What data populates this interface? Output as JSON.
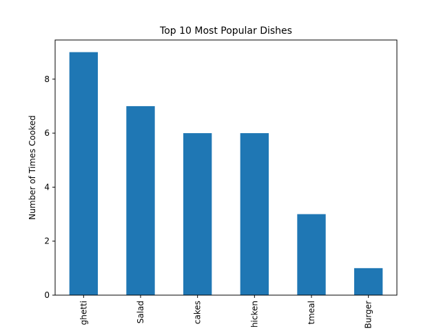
{
  "chart_data": {
    "type": "bar",
    "title": "Top 10 Most Popular Dishes",
    "xlabel": "",
    "ylabel": "Number of Times Cooked",
    "categories": [
      "ghetti",
      "Salad",
      "cakes",
      "hicken",
      "tmeal",
      "Burger"
    ],
    "values": [
      9,
      7,
      6,
      6,
      3,
      1
    ],
    "ylim": [
      0,
      9.45
    ],
    "yticks": [
      0,
      2,
      4,
      6,
      8
    ],
    "bar_color": "#1f77b4",
    "grid": false,
    "legend": "none"
  }
}
